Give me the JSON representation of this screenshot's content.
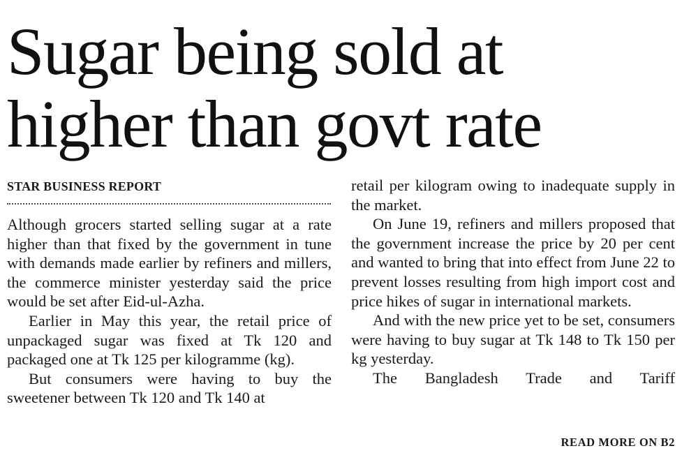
{
  "headline": {
    "line1": "Sugar being sold at",
    "line2": "higher than govt rate"
  },
  "byline": "STAR BUSINESS REPORT",
  "left_column": {
    "paragraphs": [
      "Although grocers started selling sugar at a rate higher than that fixed by the government in tune with demands made earlier by refiners and millers, the commerce minister yesterday said the price would be set after Eid-ul-Azha.",
      "Earlier in May this year, the retail price of unpackaged sugar was fixed at Tk 120 and packaged one at Tk 125 per kilogramme (kg).",
      "But consumers were having to buy the sweetener between Tk 120 and Tk 140 at"
    ]
  },
  "right_column": {
    "paragraphs": [
      "retail per kilogram owing to inadequate supply in the market.",
      "On June 19, refiners and millers proposed that the government increase the price by 20 per cent and wanted to bring that into effect from June 22 to prevent losses resulting from high import cost and price hikes of sugar in international markets.",
      "And with the new price yet to be set, consumers were having to buy sugar at Tk 148 to Tk 150 per kg yesterday.",
      "The Bangladesh Trade and Tariff"
    ]
  },
  "read_more": "READ MORE ON B2"
}
